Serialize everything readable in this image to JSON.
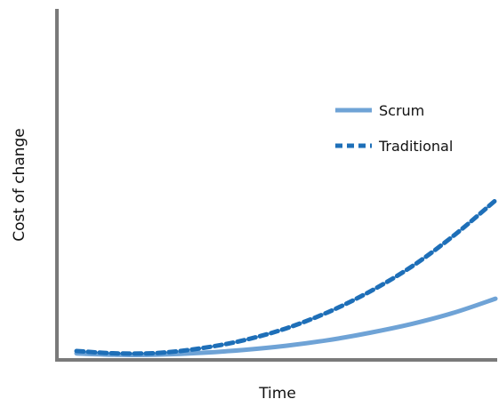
{
  "chart_data": {
    "type": "line",
    "title": "",
    "xlabel": "Time",
    "ylabel": "Cost of change",
    "xlim": [
      0,
      1
    ],
    "ylim": [
      0,
      1
    ],
    "grid": false,
    "tick_labels": false,
    "legend_position": "upper-right",
    "x": [
      0,
      0.1,
      0.2,
      0.3,
      0.4,
      0.5,
      0.6,
      0.7,
      0.8,
      0.9,
      1.0
    ],
    "series": [
      {
        "name": "Scrum",
        "style": "solid",
        "color": "#6fa3d6",
        "values": [
          0.01,
          0.005,
          0.006,
          0.012,
          0.022,
          0.036,
          0.055,
          0.08,
          0.11,
          0.148,
          0.196
        ]
      },
      {
        "name": "Traditional",
        "style": "dashed",
        "color": "#1e6fb8",
        "values": [
          0.018,
          0.01,
          0.012,
          0.028,
          0.055,
          0.095,
          0.15,
          0.22,
          0.305,
          0.41,
          0.53
        ]
      }
    ]
  }
}
